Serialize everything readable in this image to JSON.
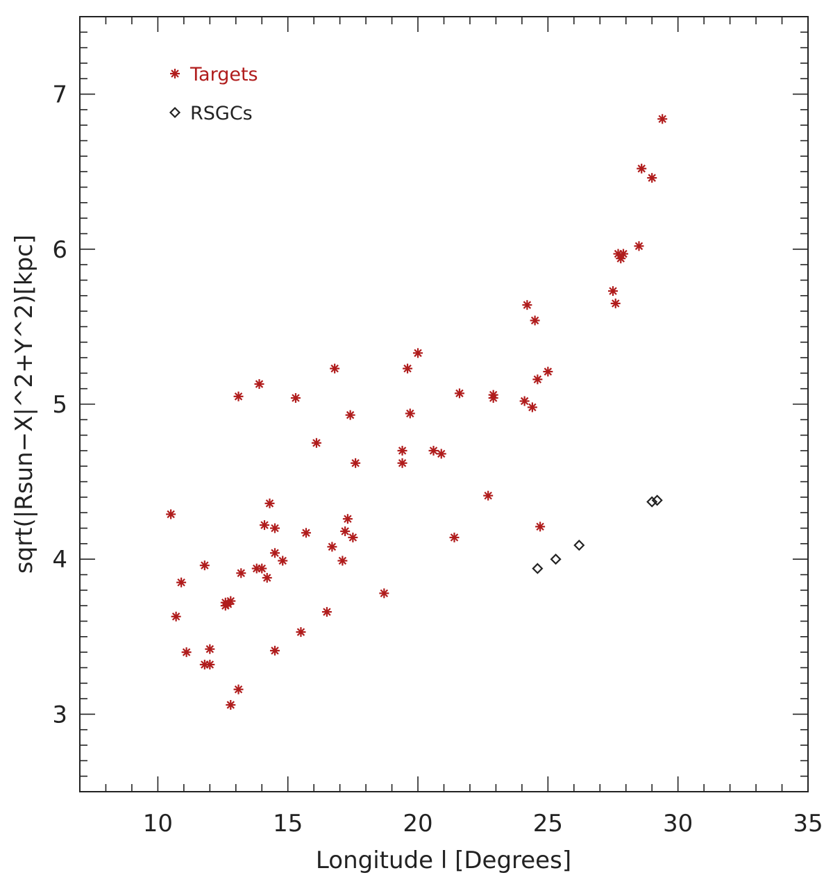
{
  "chart_data": {
    "type": "scatter",
    "xlabel": "Longitude l [Degrees]",
    "ylabel": "sqrt(|Rsun−X|^2+Y^2)[kpc]",
    "xlim": [
      7,
      35
    ],
    "ylim": [
      2.5,
      7.5
    ],
    "x_ticks": [
      10,
      15,
      20,
      25,
      30,
      35
    ],
    "x_minor_step": 1,
    "y_ticks": [
      3,
      4,
      5,
      6,
      7
    ],
    "y_minor_step": 0.1,
    "grid": false,
    "legend_position": "top-left",
    "series": [
      {
        "name": "Targets",
        "marker": "asterisk",
        "color": "#b01c1c",
        "points": [
          [
            10.5,
            4.29
          ],
          [
            10.7,
            3.63
          ],
          [
            10.9,
            3.85
          ],
          [
            11.1,
            3.4
          ],
          [
            11.8,
            3.96
          ],
          [
            11.8,
            3.32
          ],
          [
            12.0,
            3.32
          ],
          [
            12.0,
            3.42
          ],
          [
            12.6,
            3.72
          ],
          [
            12.7,
            3.71
          ],
          [
            12.8,
            3.73
          ],
          [
            12.6,
            3.7
          ],
          [
            12.8,
            3.06
          ],
          [
            13.1,
            5.05
          ],
          [
            13.1,
            3.16
          ],
          [
            13.2,
            3.91
          ],
          [
            13.8,
            3.94
          ],
          [
            13.9,
            5.13
          ],
          [
            14.0,
            3.94
          ],
          [
            14.1,
            4.22
          ],
          [
            14.3,
            4.36
          ],
          [
            14.2,
            3.88
          ],
          [
            14.5,
            4.2
          ],
          [
            14.5,
            3.41
          ],
          [
            14.5,
            4.04
          ],
          [
            14.8,
            3.99
          ],
          [
            15.3,
            5.04
          ],
          [
            15.5,
            3.53
          ],
          [
            15.7,
            4.17
          ],
          [
            16.1,
            4.75
          ],
          [
            16.5,
            3.66
          ],
          [
            16.7,
            4.08
          ],
          [
            16.8,
            5.23
          ],
          [
            17.1,
            3.99
          ],
          [
            17.2,
            4.18
          ],
          [
            17.3,
            4.26
          ],
          [
            17.4,
            4.93
          ],
          [
            17.5,
            4.14
          ],
          [
            17.6,
            4.62
          ],
          [
            18.7,
            3.78
          ],
          [
            19.4,
            4.7
          ],
          [
            19.4,
            4.62
          ],
          [
            19.6,
            5.23
          ],
          [
            19.7,
            4.94
          ],
          [
            20.0,
            5.33
          ],
          [
            20.6,
            4.7
          ],
          [
            20.9,
            4.68
          ],
          [
            21.4,
            4.14
          ],
          [
            21.6,
            5.07
          ],
          [
            22.7,
            4.41
          ],
          [
            22.9,
            5.06
          ],
          [
            22.9,
            5.04
          ],
          [
            24.1,
            5.02
          ],
          [
            24.2,
            5.64
          ],
          [
            24.4,
            4.98
          ],
          [
            24.5,
            5.54
          ],
          [
            24.6,
            5.16
          ],
          [
            24.7,
            4.21
          ],
          [
            25.0,
            5.21
          ],
          [
            27.5,
            5.73
          ],
          [
            27.6,
            5.65
          ],
          [
            27.7,
            5.97
          ],
          [
            27.8,
            5.94
          ],
          [
            27.9,
            5.97
          ],
          [
            28.5,
            6.02
          ],
          [
            28.6,
            6.52
          ],
          [
            29.0,
            6.46
          ],
          [
            29.4,
            6.84
          ]
        ]
      },
      {
        "name": "RSGCs",
        "marker": "diamond",
        "color": "#222222",
        "points": [
          [
            24.6,
            3.94
          ],
          [
            25.3,
            4.0
          ],
          [
            26.2,
            4.09
          ],
          [
            29.0,
            4.37
          ],
          [
            29.2,
            4.38
          ]
        ]
      }
    ]
  }
}
